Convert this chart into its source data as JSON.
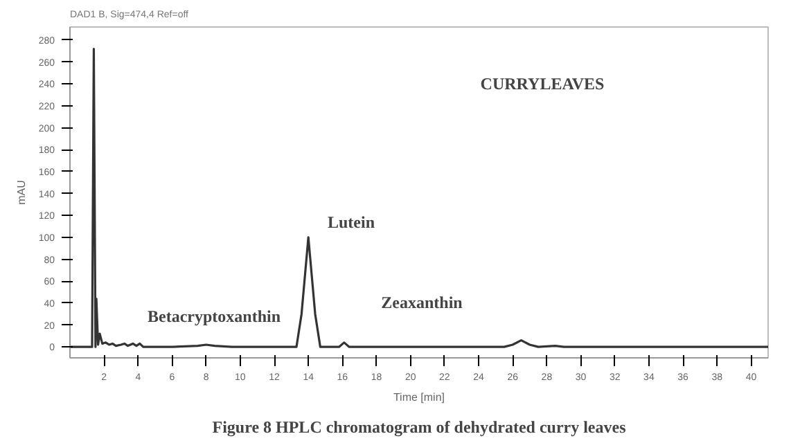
{
  "chart_data": {
    "type": "line",
    "title": "Figure 8 HPLC chromatogram of dehydrated curry leaves",
    "subtitle": "DAD1 B, Sig=474,4 Ref=off",
    "xlabel": "Time [min]",
    "ylabel": "mAU",
    "annotations": [
      "CURRYLEAVES",
      "Betacryptoxanthin",
      "Lutein",
      "Zeaxanthin"
    ],
    "x": [
      0,
      1.3,
      1.4,
      1.5,
      1.55,
      1.65,
      1.75,
      1.9,
      2.1,
      2.3,
      2.5,
      2.7,
      3.0,
      3.2,
      3.4,
      3.7,
      3.9,
      4.1,
      4.3,
      6,
      7.5,
      8,
      8.5,
      9.5,
      13.3,
      13.6,
      14,
      14.4,
      14.7,
      15.8,
      16.1,
      16.4,
      25.5,
      26,
      26.5,
      27,
      27.5,
      28.5,
      29,
      41
    ],
    "series": [
      {
        "color": "#333333",
        "values": [
          0,
          0,
          272,
          0,
          44,
          2,
          12,
          3,
          4,
          2,
          3,
          1,
          2,
          3,
          1,
          3,
          1,
          3,
          0,
          0,
          1,
          2,
          1,
          0,
          0,
          30,
          100,
          30,
          0,
          0,
          4,
          0,
          0,
          2,
          6,
          2,
          0,
          1,
          0,
          0
        ]
      }
    ],
    "xlim": [
      0,
      41
    ],
    "ylim": [
      -10,
      292
    ],
    "xticks": [
      2,
      4,
      6,
      8,
      10,
      12,
      14,
      16,
      18,
      20,
      22,
      24,
      26,
      28,
      30,
      32,
      34,
      36,
      38,
      40
    ],
    "yticks": [
      0,
      20,
      40,
      60,
      80,
      100,
      120,
      140,
      160,
      180,
      200,
      220,
      240,
      260,
      280
    ],
    "grid": false,
    "line_style": "solid",
    "marker": "none"
  }
}
